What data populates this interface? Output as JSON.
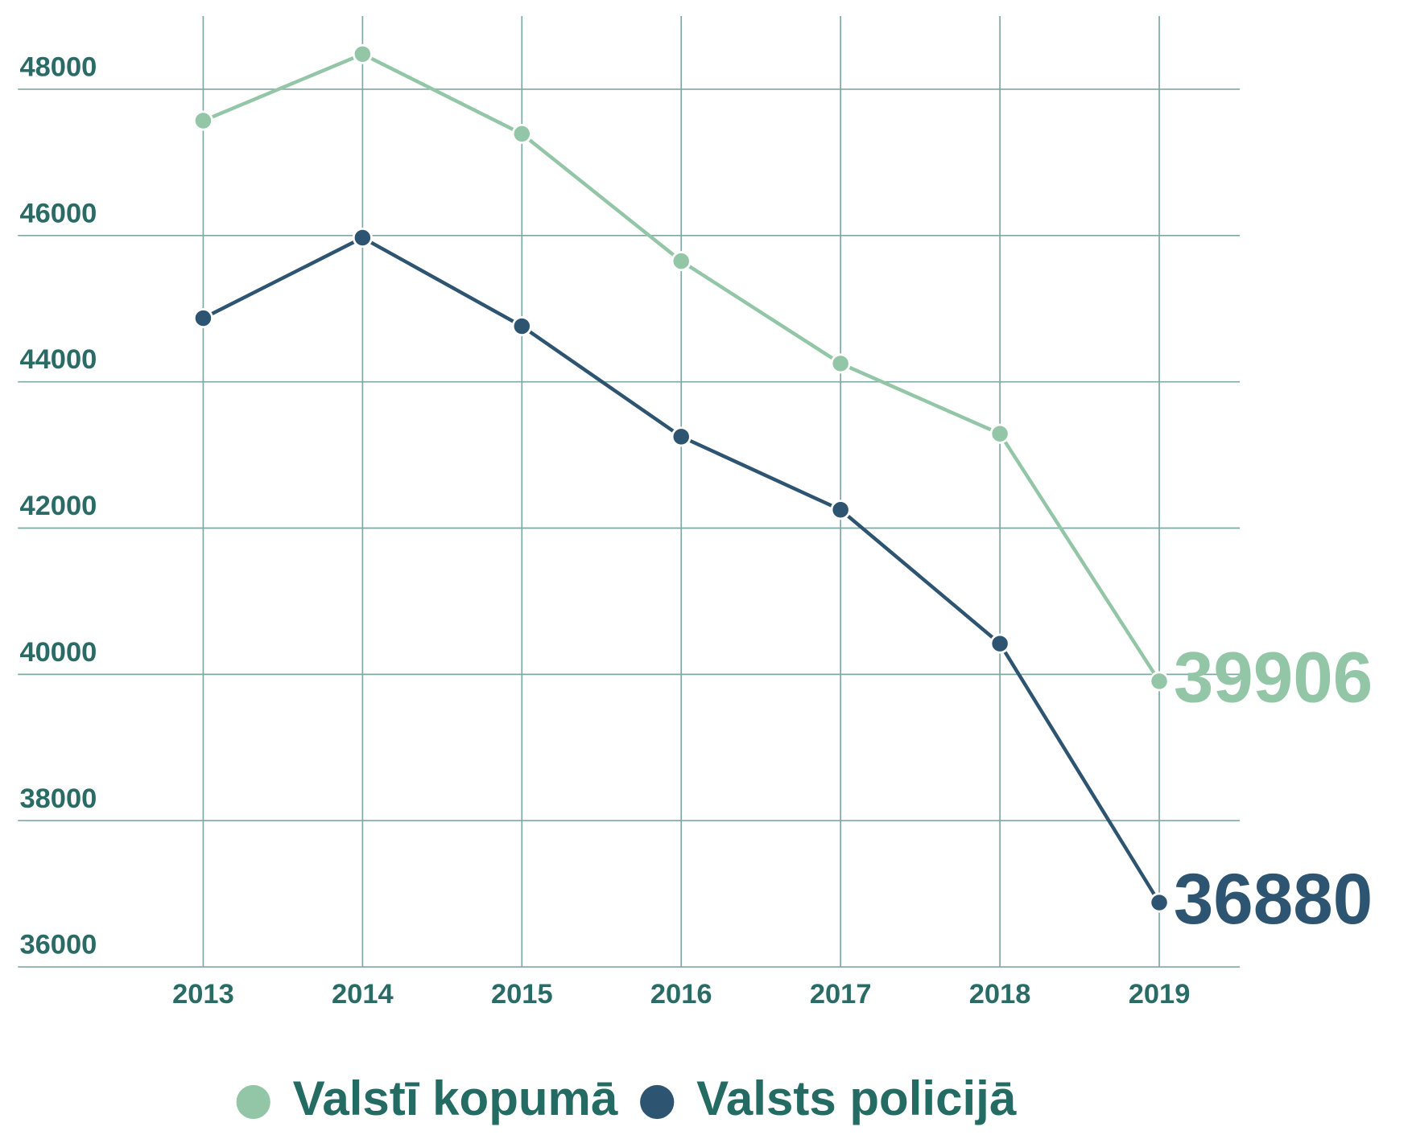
{
  "chart_data": {
    "type": "line",
    "categories": [
      "2013",
      "2014",
      "2015",
      "2016",
      "2017",
      "2018",
      "2019"
    ],
    "series": [
      {
        "name": "Valstī kopumā",
        "color": "#93c6a7",
        "values": [
          47570,
          48480,
          47390,
          45650,
          44250,
          43290,
          39906
        ]
      },
      {
        "name": "Valsts policijā",
        "color": "#2d5470",
        "values": [
          44870,
          45970,
          44760,
          43250,
          42250,
          40420,
          36880
        ]
      }
    ],
    "ylim": [
      36000,
      49000
    ],
    "yticks": [
      36000,
      38000,
      40000,
      42000,
      44000,
      46000,
      48000
    ],
    "grid": true,
    "legend": "bottom"
  }
}
